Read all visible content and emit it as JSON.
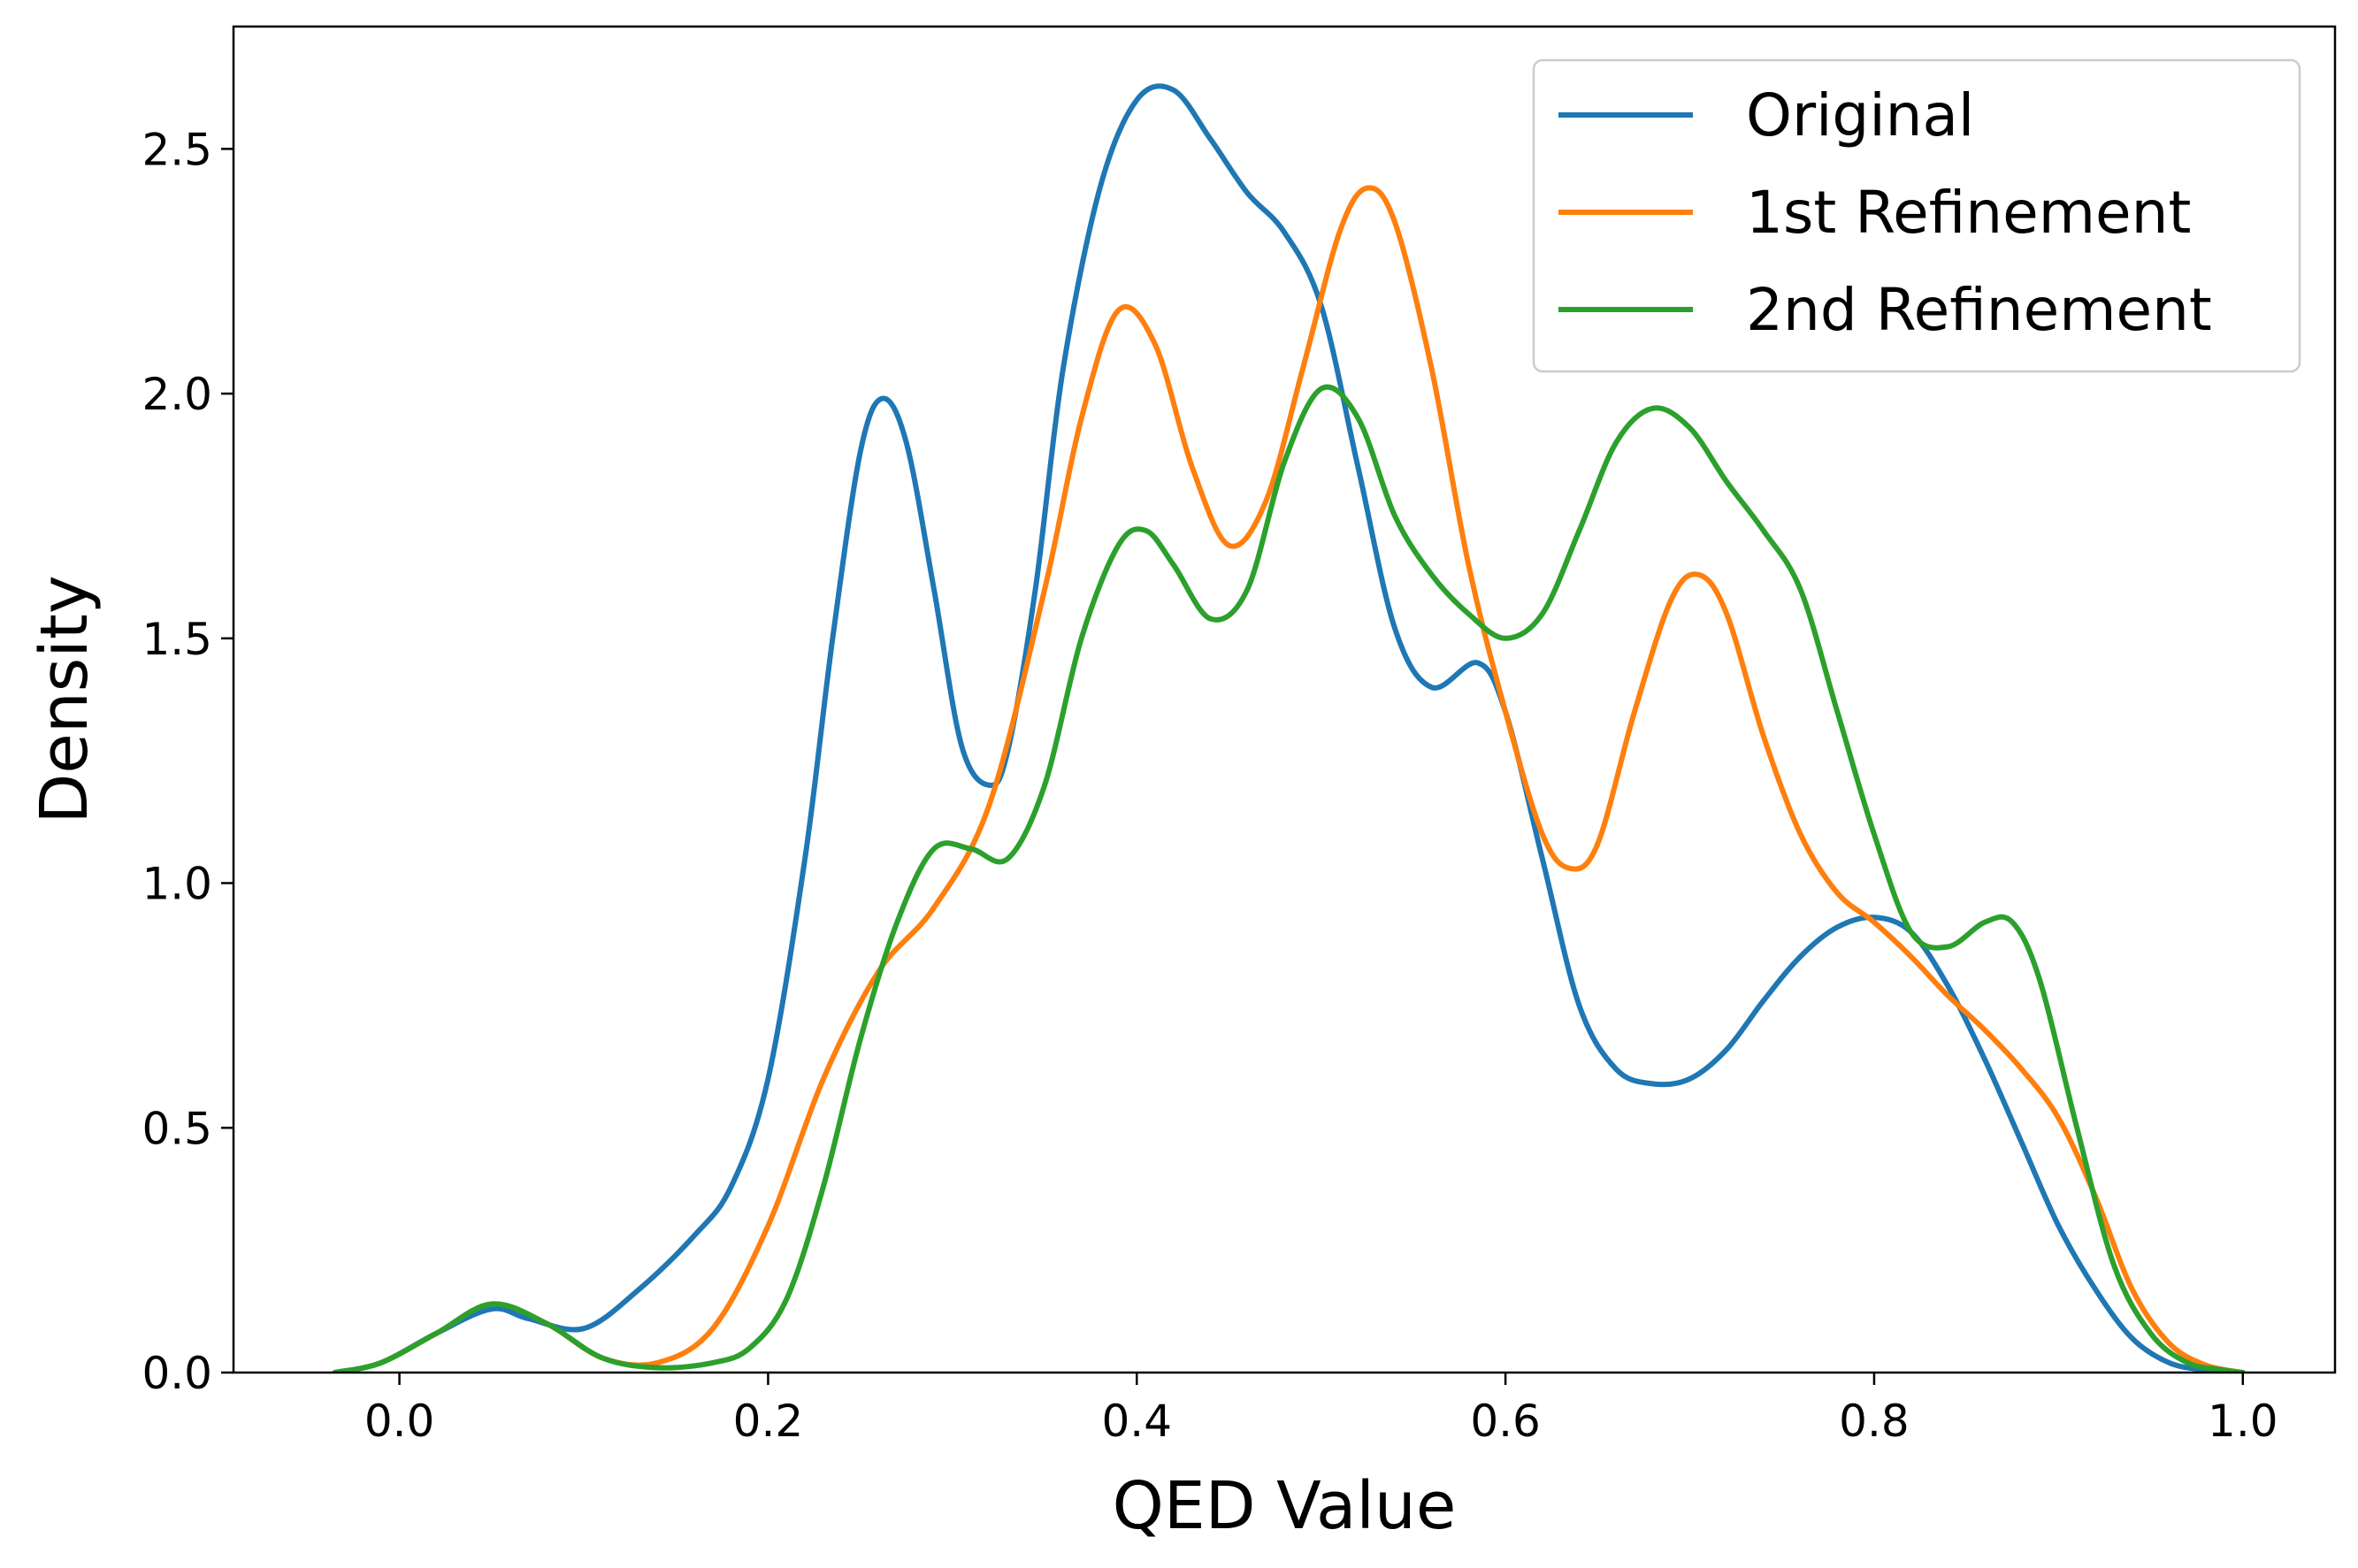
{
  "chart_data": {
    "type": "line",
    "title": "",
    "xlabel": "QED Value",
    "ylabel": "Density",
    "xlim": [
      -0.09,
      1.05
    ],
    "ylim": [
      0.0,
      2.75
    ],
    "xticks": [
      "0.0",
      "0.2",
      "0.4",
      "0.6",
      "0.8",
      "1.0"
    ],
    "yticks": [
      "0.0",
      "0.5",
      "1.0",
      "1.5",
      "2.0",
      "2.5"
    ],
    "grid": false,
    "legend_position": "top-right",
    "series": [
      {
        "name": "Original",
        "color": "#1f77b4",
        "x": [
          -0.035,
          -0.01,
          0.02,
          0.05,
          0.07,
          0.1,
          0.13,
          0.16,
          0.18,
          0.2,
          0.22,
          0.235,
          0.25,
          0.262,
          0.275,
          0.29,
          0.305,
          0.32,
          0.33,
          0.345,
          0.36,
          0.38,
          0.4,
          0.42,
          0.44,
          0.46,
          0.48,
          0.5,
          0.52,
          0.54,
          0.56,
          0.585,
          0.6,
          0.62,
          0.64,
          0.66,
          0.68,
          0.7,
          0.72,
          0.74,
          0.76,
          0.78,
          0.8,
          0.82,
          0.84,
          0.86,
          0.88,
          0.9,
          0.92,
          0.94,
          0.96,
          0.98,
          1.0
        ],
        "y": [
          0.0,
          0.02,
          0.08,
          0.13,
          0.11,
          0.09,
          0.17,
          0.28,
          0.38,
          0.6,
          1.05,
          1.5,
          1.88,
          1.99,
          1.9,
          1.6,
          1.28,
          1.2,
          1.27,
          1.6,
          2.05,
          2.42,
          2.6,
          2.62,
          2.52,
          2.41,
          2.33,
          2.18,
          1.85,
          1.52,
          1.4,
          1.45,
          1.35,
          1.05,
          0.75,
          0.62,
          0.59,
          0.6,
          0.66,
          0.76,
          0.85,
          0.91,
          0.93,
          0.9,
          0.79,
          0.64,
          0.47,
          0.3,
          0.17,
          0.07,
          0.02,
          0.005,
          0.0
        ]
      },
      {
        "name": "1st Refinement",
        "color": "#ff7f0e",
        "x": [
          -0.035,
          -0.01,
          0.02,
          0.05,
          0.08,
          0.11,
          0.14,
          0.17,
          0.2,
          0.23,
          0.26,
          0.29,
          0.32,
          0.35,
          0.37,
          0.39,
          0.41,
          0.43,
          0.45,
          0.47,
          0.49,
          0.51,
          0.525,
          0.54,
          0.56,
          0.58,
          0.6,
          0.62,
          0.635,
          0.65,
          0.67,
          0.69,
          0.705,
          0.72,
          0.74,
          0.76,
          0.78,
          0.8,
          0.82,
          0.84,
          0.86,
          0.88,
          0.9,
          0.92,
          0.94,
          0.96,
          0.98,
          1.0
        ],
        "y": [
          0.0,
          0.02,
          0.08,
          0.14,
          0.1,
          0.03,
          0.02,
          0.09,
          0.3,
          0.6,
          0.82,
          0.95,
          1.16,
          1.6,
          1.95,
          2.17,
          2.1,
          1.85,
          1.69,
          1.78,
          2.05,
          2.33,
          2.42,
          2.35,
          2.05,
          1.65,
          1.35,
          1.1,
          1.03,
          1.08,
          1.35,
          1.58,
          1.63,
          1.55,
          1.3,
          1.1,
          0.98,
          0.92,
          0.85,
          0.77,
          0.7,
          0.62,
          0.52,
          0.36,
          0.17,
          0.06,
          0.015,
          0.0
        ]
      },
      {
        "name": "2nd Refinement",
        "color": "#2ca02c",
        "x": [
          -0.035,
          -0.01,
          0.02,
          0.05,
          0.08,
          0.11,
          0.14,
          0.17,
          0.19,
          0.21,
          0.23,
          0.25,
          0.27,
          0.29,
          0.31,
          0.33,
          0.35,
          0.37,
          0.39,
          0.405,
          0.42,
          0.44,
          0.46,
          0.48,
          0.5,
          0.52,
          0.54,
          0.56,
          0.58,
          0.6,
          0.62,
          0.64,
          0.66,
          0.68,
          0.7,
          0.72,
          0.74,
          0.76,
          0.78,
          0.8,
          0.82,
          0.84,
          0.86,
          0.875,
          0.89,
          0.91,
          0.93,
          0.95,
          0.97,
          0.99,
          1.0
        ],
        "y": [
          0.0,
          0.02,
          0.08,
          0.14,
          0.1,
          0.03,
          0.01,
          0.02,
          0.05,
          0.15,
          0.38,
          0.68,
          0.92,
          1.07,
          1.07,
          1.05,
          1.2,
          1.5,
          1.69,
          1.72,
          1.65,
          1.54,
          1.6,
          1.86,
          2.01,
          1.95,
          1.75,
          1.63,
          1.55,
          1.5,
          1.55,
          1.72,
          1.9,
          1.97,
          1.93,
          1.82,
          1.72,
          1.6,
          1.35,
          1.1,
          0.9,
          0.87,
          0.92,
          0.92,
          0.8,
          0.5,
          0.22,
          0.08,
          0.02,
          0.005,
          0.0
        ]
      }
    ]
  }
}
